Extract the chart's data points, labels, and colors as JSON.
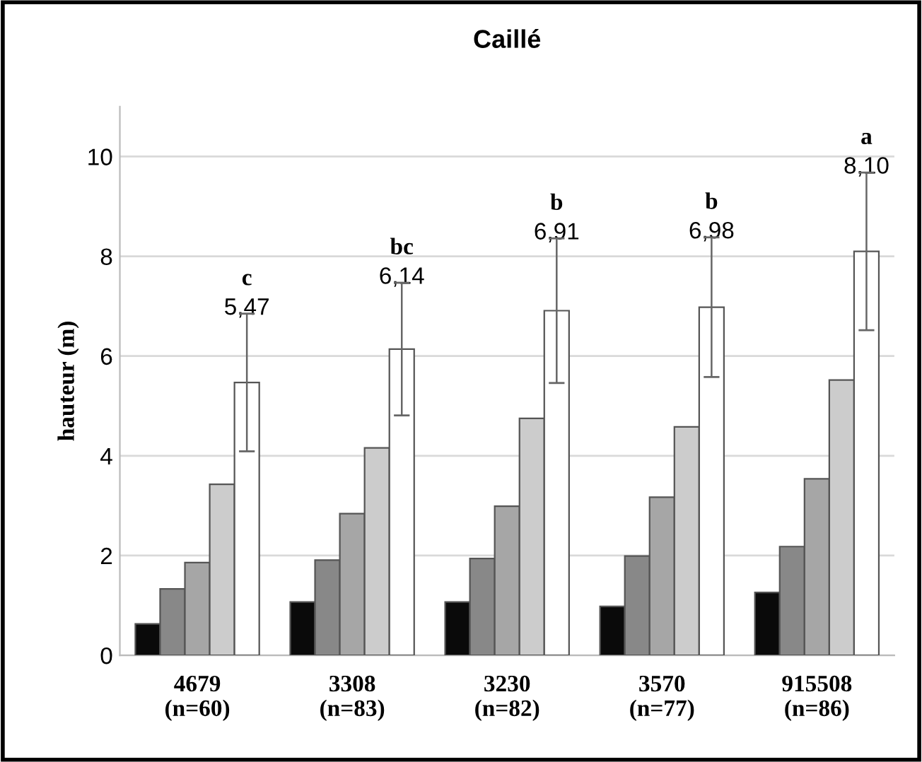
{
  "chart_data": {
    "type": "bar",
    "title": "Caillé",
    "ylabel": "hauteur (m)",
    "categories": [
      "4679\n(n=60)",
      "3308\n(n=83)",
      "3230\n(n=82)",
      "3570\n(n=77)",
      "915508\n(n=86)"
    ],
    "series": [
      {
        "color": "#0a0a0a",
        "values": [
          0.63,
          1.07,
          1.07,
          0.98,
          1.26
        ]
      },
      {
        "color": "#888888",
        "values": [
          1.33,
          1.91,
          1.94,
          1.99,
          2.18
        ]
      },
      {
        "color": "#a6a6a6",
        "values": [
          1.86,
          2.84,
          2.99,
          3.17,
          3.54
        ]
      },
      {
        "color": "#cccccc",
        "values": [
          3.43,
          4.16,
          4.75,
          4.58,
          5.52
        ]
      },
      {
        "color": "#ffffff",
        "values": [
          5.47,
          6.14,
          6.91,
          6.98,
          8.1
        ],
        "errors": [
          1.38,
          1.33,
          1.45,
          1.4,
          1.58
        ],
        "value_labels": [
          "5,47",
          "6,14",
          "6,91",
          "6,98",
          "8,10"
        ]
      }
    ],
    "annotations": [
      "c",
      "bc",
      "b",
      "b",
      "a"
    ],
    "ylim": [
      0,
      11
    ],
    "yticks": [
      0,
      2,
      4,
      6,
      8,
      10
    ],
    "grid": "y",
    "legend": false
  }
}
